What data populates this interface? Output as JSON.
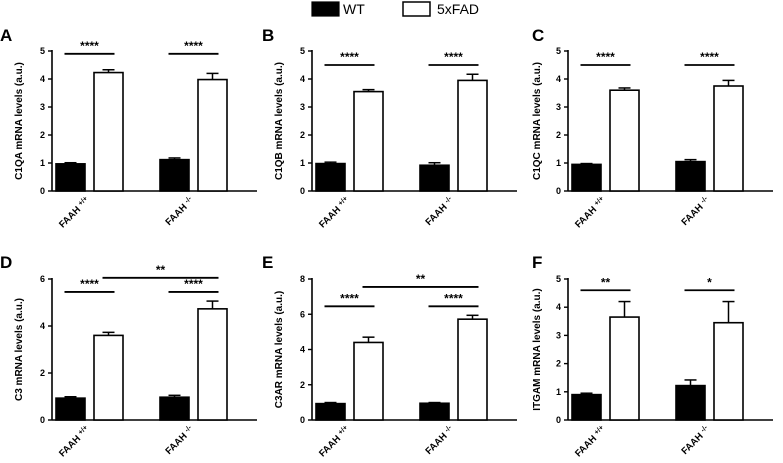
{
  "legend": [
    {
      "name": "WT",
      "fill": "#000000"
    },
    {
      "name": "5xFAD",
      "fill": "#ffffff"
    }
  ],
  "chart_data": [
    {
      "panel": "A",
      "type": "bar",
      "ylabel": "C1QA mRNA levels (a.u.)",
      "ylim": [
        0,
        5
      ],
      "yticks": [
        "0",
        "1",
        "2",
        "3",
        "4",
        "5"
      ],
      "groups": [
        {
          "base": "FAAH",
          "sup": "+/+"
        },
        {
          "base": "FAAH",
          "sup": "-/-"
        }
      ],
      "series": [
        {
          "name": "WT",
          "values": [
            0.97,
            1.12
          ],
          "errors": [
            0.04,
            0.06
          ]
        },
        {
          "name": "5xFAD",
          "values": [
            4.23,
            3.98
          ],
          "errors": [
            0.1,
            0.22
          ]
        }
      ],
      "significance": [
        {
          "from": [
            0,
            0
          ],
          "to": [
            0,
            1
          ],
          "label": "****",
          "level": 4.9
        },
        {
          "from": [
            1,
            0
          ],
          "to": [
            1,
            1
          ],
          "label": "****",
          "level": 4.9
        }
      ]
    },
    {
      "panel": "B",
      "type": "bar",
      "ylabel": "C1QB mRNA levels (a.u.)",
      "ylim": [
        0,
        5
      ],
      "yticks": [
        "0",
        "1",
        "2",
        "3",
        "4",
        "5"
      ],
      "groups": [
        {
          "base": "FAAH",
          "sup": "+/+"
        },
        {
          "base": "FAAH",
          "sup": "-/-"
        }
      ],
      "series": [
        {
          "name": "WT",
          "values": [
            0.98,
            0.92
          ],
          "errors": [
            0.05,
            0.09
          ]
        },
        {
          "name": "5xFAD",
          "values": [
            3.55,
            3.95
          ],
          "errors": [
            0.07,
            0.22
          ]
        }
      ],
      "significance": [
        {
          "from": [
            0,
            0
          ],
          "to": [
            0,
            1
          ],
          "label": "****",
          "level": 4.5
        },
        {
          "from": [
            1,
            0
          ],
          "to": [
            1,
            1
          ],
          "label": "****",
          "level": 4.5
        }
      ]
    },
    {
      "panel": "C",
      "type": "bar",
      "ylabel": "C1QC mRNA levels (a.u.)",
      "ylim": [
        0,
        5
      ],
      "yticks": [
        "0",
        "1",
        "2",
        "3",
        "4",
        "5"
      ],
      "groups": [
        {
          "base": "FAAH",
          "sup": "+/+"
        },
        {
          "base": "FAAH",
          "sup": "-/-"
        }
      ],
      "series": [
        {
          "name": "WT",
          "values": [
            0.95,
            1.05
          ],
          "errors": [
            0.03,
            0.07
          ]
        },
        {
          "name": "5xFAD",
          "values": [
            3.6,
            3.75
          ],
          "errors": [
            0.08,
            0.2
          ]
        }
      ],
      "significance": [
        {
          "from": [
            0,
            0
          ],
          "to": [
            0,
            1
          ],
          "label": "****",
          "level": 4.5
        },
        {
          "from": [
            1,
            0
          ],
          "to": [
            1,
            1
          ],
          "label": "****",
          "level": 4.5
        }
      ]
    },
    {
      "panel": "D",
      "type": "bar",
      "ylabel": "C3 mRNA levels (a.u.)",
      "ylim": [
        0,
        6
      ],
      "yticks": [
        "0",
        "2",
        "4",
        "6"
      ],
      "groups": [
        {
          "base": "FAAH",
          "sup": "+/+"
        },
        {
          "base": "FAAH",
          "sup": "-/-"
        }
      ],
      "series": [
        {
          "name": "WT",
          "values": [
            0.93,
            0.97
          ],
          "errors": [
            0.06,
            0.08
          ]
        },
        {
          "name": "5xFAD",
          "values": [
            3.6,
            4.73
          ],
          "errors": [
            0.13,
            0.33
          ]
        }
      ],
      "significance": [
        {
          "from": [
            0,
            0
          ],
          "to": [
            0,
            1
          ],
          "label": "****",
          "level": 5.45
        },
        {
          "from": [
            1,
            0
          ],
          "to": [
            1,
            1
          ],
          "label": "****",
          "level": 5.45
        },
        {
          "from": [
            0,
            1
          ],
          "to": [
            1,
            1
          ],
          "label": "**",
          "level": 6.05
        }
      ]
    },
    {
      "panel": "E",
      "type": "bar",
      "ylabel": "C3AR mRNA levels (a.u.)",
      "ylim": [
        0,
        8
      ],
      "yticks": [
        "0",
        "2",
        "4",
        "6",
        "8"
      ],
      "groups": [
        {
          "base": "FAAH",
          "sup": "+/+"
        },
        {
          "base": "FAAH",
          "sup": "-/-"
        }
      ],
      "series": [
        {
          "name": "WT",
          "values": [
            0.93,
            0.95
          ],
          "errors": [
            0.06,
            0.04
          ]
        },
        {
          "name": "5xFAD",
          "values": [
            4.4,
            5.72
          ],
          "errors": [
            0.3,
            0.22
          ]
        }
      ],
      "significance": [
        {
          "from": [
            0,
            0
          ],
          "to": [
            0,
            1
          ],
          "label": "****",
          "level": 6.45
        },
        {
          "from": [
            1,
            0
          ],
          "to": [
            1,
            1
          ],
          "label": "****",
          "level": 6.45
        },
        {
          "from": [
            0,
            1
          ],
          "to": [
            1,
            1
          ],
          "label": "**",
          "level": 7.55
        }
      ]
    },
    {
      "panel": "F",
      "type": "bar",
      "ylabel": "ITGAM mRNA levels (a.u.)",
      "ylim": [
        0,
        5
      ],
      "yticks": [
        "0",
        "1",
        "2",
        "3",
        "4",
        "5"
      ],
      "groups": [
        {
          "base": "FAAH",
          "sup": "+/+"
        },
        {
          "base": "FAAH",
          "sup": "-/-"
        }
      ],
      "series": [
        {
          "name": "WT",
          "values": [
            0.9,
            1.22
          ],
          "errors": [
            0.05,
            0.2
          ]
        },
        {
          "name": "5xFAD",
          "values": [
            3.65,
            3.45
          ],
          "errors": [
            0.55,
            0.75
          ]
        }
      ],
      "significance": [
        {
          "from": [
            0,
            0
          ],
          "to": [
            0,
            1
          ],
          "label": "**",
          "level": 4.6
        },
        {
          "from": [
            1,
            0
          ],
          "to": [
            1,
            1
          ],
          "label": "*",
          "level": 4.6
        }
      ]
    }
  ]
}
